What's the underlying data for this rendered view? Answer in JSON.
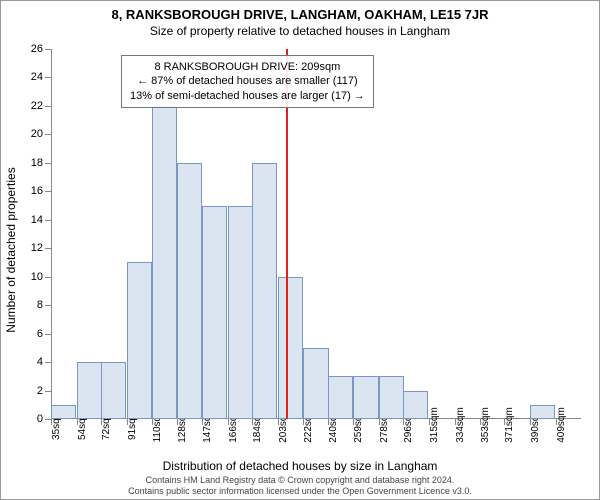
{
  "title_main": "8, RANKSBOROUGH DRIVE, LANGHAM, OAKHAM, LE15 7JR",
  "title_sub": "Size of property relative to detached houses in Langham",
  "y_axis_label": "Number of detached properties",
  "x_axis_label": "Distribution of detached houses by size in Langham",
  "footer_line1": "Contains HM Land Registry data © Crown copyright and database right 2024.",
  "footer_line2": "Contains public sector information licensed under the Open Government Licence v3.0.",
  "chart": {
    "type": "histogram",
    "bar_color": "#dbe5f1",
    "bar_border_color": "#7a96c4",
    "marker_color": "#e02020",
    "background_color": "#ffffff",
    "axis_color": "#888888",
    "text_color": "#000000",
    "y_max": 26,
    "y_tick_step": 2,
    "y_ticks": [
      0,
      2,
      4,
      6,
      8,
      10,
      12,
      14,
      16,
      18,
      20,
      22,
      24,
      26
    ],
    "x_labels": [
      "35sqm",
      "54sqm",
      "72sqm",
      "91sqm",
      "110sqm",
      "128sqm",
      "147sqm",
      "166sqm",
      "184sqm",
      "203sqm",
      "222sqm",
      "240sqm",
      "259sqm",
      "278sqm",
      "296sqm",
      "315sqm",
      "334sqm",
      "353sqm",
      "371sqm",
      "390sqm",
      "409sqm"
    ],
    "x_min": 35,
    "x_max": 409,
    "bar_bin_width": 18.7,
    "bars": [
      {
        "x": 35,
        "value": 1
      },
      {
        "x": 54,
        "value": 4
      },
      {
        "x": 72,
        "value": 4
      },
      {
        "x": 91,
        "value": 11
      },
      {
        "x": 110,
        "value": 22
      },
      {
        "x": 128,
        "value": 18
      },
      {
        "x": 147,
        "value": 15
      },
      {
        "x": 166,
        "value": 15
      },
      {
        "x": 184,
        "value": 18
      },
      {
        "x": 203,
        "value": 10
      },
      {
        "x": 222,
        "value": 5
      },
      {
        "x": 240,
        "value": 3
      },
      {
        "x": 259,
        "value": 3
      },
      {
        "x": 278,
        "value": 3
      },
      {
        "x": 296,
        "value": 2
      },
      {
        "x": 315,
        "value": 0
      },
      {
        "x": 334,
        "value": 0
      },
      {
        "x": 353,
        "value": 0
      },
      {
        "x": 371,
        "value": 0
      },
      {
        "x": 390,
        "value": 1
      },
      {
        "x": 409,
        "value": 0
      }
    ],
    "marker_x": 209,
    "info_box": {
      "line1": "8 RANKSBOROUGH DRIVE: 209sqm",
      "line2": "← 87% of detached houses are smaller (117)",
      "line3": "13% of semi-detached houses are larger (17) →"
    }
  }
}
